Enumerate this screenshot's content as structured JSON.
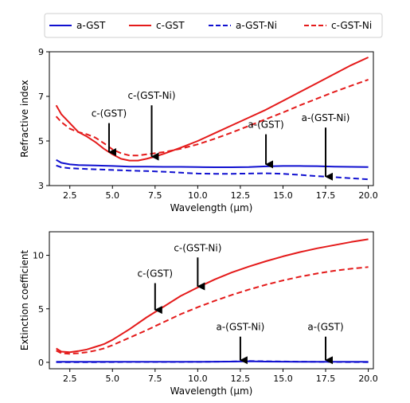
{
  "legend": [
    {
      "name": "a-GST",
      "color": "#1010d0",
      "dash": "solid"
    },
    {
      "name": "c-GST",
      "color": "#e41a1a",
      "dash": "solid"
    },
    {
      "name": "a-GST-Ni",
      "color": "#1010d0",
      "dash": "dashed"
    },
    {
      "name": "c-GST-Ni",
      "color": "#e41a1a",
      "dash": "dashed"
    }
  ],
  "chart_data": [
    {
      "type": "line",
      "xlabel": "Wavelength (μm)",
      "ylabel": "Refractive index",
      "xlim": [
        1.3,
        20.3
      ],
      "ylim": [
        3,
        9
      ],
      "xticks": [
        "2.5",
        "5.0",
        "7.5",
        "10.0",
        "12.5",
        "15.0",
        "17.5",
        "20.0"
      ],
      "yticks": [
        "3",
        "5",
        "7",
        "9"
      ],
      "series": [
        {
          "name": "a-GST",
          "color": "#1010d0",
          "dash": "solid",
          "x": [
            1.7,
            2.0,
            2.5,
            3,
            4,
            5,
            6,
            7,
            8,
            9,
            10,
            11,
            12,
            13,
            14,
            15,
            16,
            17,
            18,
            19,
            20
          ],
          "y": [
            4.15,
            4.02,
            3.95,
            3.92,
            3.9,
            3.88,
            3.85,
            3.85,
            3.84,
            3.84,
            3.83,
            3.82,
            3.82,
            3.83,
            3.86,
            3.88,
            3.88,
            3.87,
            3.85,
            3.84,
            3.83
          ]
        },
        {
          "name": "c-GST",
          "color": "#e41a1a",
          "dash": "solid",
          "x": [
            1.7,
            2.0,
            2.5,
            3,
            3.5,
            4,
            4.5,
            5,
            5.5,
            6,
            6.5,
            7,
            7.5,
            8,
            9,
            10,
            11,
            12,
            13,
            14,
            15,
            16,
            17,
            18,
            19,
            20
          ],
          "y": [
            6.6,
            6.2,
            5.8,
            5.4,
            5.2,
            4.95,
            4.65,
            4.4,
            4.2,
            4.12,
            4.12,
            4.2,
            4.3,
            4.42,
            4.7,
            5.0,
            5.35,
            5.7,
            6.05,
            6.4,
            6.8,
            7.2,
            7.6,
            8.0,
            8.4,
            8.75
          ]
        },
        {
          "name": "a-GST-Ni",
          "color": "#1010d0",
          "dash": "dashed",
          "x": [
            1.7,
            2.0,
            2.5,
            3,
            4,
            5,
            6,
            7,
            8,
            9,
            10,
            11,
            12,
            13,
            14,
            15,
            16,
            17,
            18,
            19,
            20
          ],
          "y": [
            3.9,
            3.82,
            3.78,
            3.76,
            3.73,
            3.7,
            3.67,
            3.65,
            3.62,
            3.58,
            3.54,
            3.53,
            3.53,
            3.54,
            3.55,
            3.53,
            3.48,
            3.42,
            3.38,
            3.33,
            3.28
          ]
        },
        {
          "name": "c-GST-Ni",
          "color": "#e41a1a",
          "dash": "dashed",
          "x": [
            1.7,
            2.0,
            2.5,
            3,
            3.5,
            4,
            4.5,
            5,
            5.5,
            6,
            6.5,
            7,
            7.5,
            8,
            9,
            10,
            11,
            12,
            13,
            14,
            15,
            16,
            17,
            18,
            19,
            20
          ],
          "y": [
            6.1,
            5.85,
            5.55,
            5.4,
            5.3,
            5.15,
            4.9,
            4.62,
            4.45,
            4.35,
            4.35,
            4.4,
            4.45,
            4.5,
            4.65,
            4.85,
            5.1,
            5.38,
            5.68,
            5.98,
            6.28,
            6.6,
            6.9,
            7.2,
            7.48,
            7.75
          ]
        }
      ],
      "annotations": [
        {
          "text": "c-(GST)",
          "x": 4.8,
          "y_tip": 4.5,
          "y_tail": 5.8
        },
        {
          "text": "c-(GST-Ni)",
          "x": 7.3,
          "y_tip": 4.3,
          "y_tail": 6.6
        },
        {
          "text": "a-(GST)",
          "x": 14.0,
          "y_tip": 3.95,
          "y_tail": 5.3
        },
        {
          "text": "a-(GST-Ni)",
          "x": 17.5,
          "y_tip": 3.4,
          "y_tail": 5.6
        }
      ]
    },
    {
      "type": "line",
      "xlabel": "Wavelength (μm)",
      "ylabel": "Extinction coefficient",
      "xlim": [
        1.3,
        20.3
      ],
      "ylim": [
        -0.6,
        12.2
      ],
      "xticks": [
        "2.5",
        "5.0",
        "7.5",
        "10.0",
        "12.5",
        "15.0",
        "17.5",
        "20.0"
      ],
      "yticks": [
        "0",
        "5",
        "10"
      ],
      "series": [
        {
          "name": "a-GST",
          "color": "#1010d0",
          "dash": "solid",
          "x": [
            1.7,
            2.5,
            4,
            6,
            8,
            10,
            12,
            13,
            14,
            16,
            18,
            20
          ],
          "y": [
            0.05,
            0.05,
            0.05,
            0.05,
            0.05,
            0.05,
            0.07,
            0.1,
            0.07,
            0.05,
            0.05,
            0.05
          ]
        },
        {
          "name": "c-GST",
          "color": "#e41a1a",
          "dash": "solid",
          "x": [
            1.7,
            2.0,
            2.5,
            3,
            3.5,
            4,
            4.5,
            5,
            6,
            7,
            8,
            9,
            10,
            11,
            12,
            13,
            14,
            15,
            16,
            17,
            18,
            19,
            20
          ],
          "y": [
            1.3,
            1.0,
            0.95,
            1.05,
            1.2,
            1.45,
            1.7,
            2.1,
            3.1,
            4.2,
            5.2,
            6.2,
            7.0,
            7.75,
            8.4,
            8.95,
            9.45,
            9.9,
            10.3,
            10.65,
            10.95,
            11.25,
            11.5
          ]
        },
        {
          "name": "a-GST-Ni",
          "color": "#1010d0",
          "dash": "dashed",
          "x": [
            1.7,
            2.5,
            4,
            6,
            8,
            10,
            12,
            13,
            14,
            16,
            18,
            20
          ],
          "y": [
            0.02,
            0.02,
            0.02,
            0.03,
            0.03,
            0.04,
            0.08,
            0.12,
            0.1,
            0.06,
            0.03,
            0.02
          ]
        },
        {
          "name": "c-GST-Ni",
          "color": "#e41a1a",
          "dash": "dashed",
          "x": [
            1.7,
            2.0,
            2.5,
            3,
            3.5,
            4,
            4.5,
            5,
            6,
            7,
            8,
            9,
            10,
            11,
            12,
            13,
            14,
            15,
            16,
            17,
            18,
            19,
            20
          ],
          "y": [
            1.1,
            0.85,
            0.8,
            0.85,
            0.95,
            1.1,
            1.3,
            1.6,
            2.3,
            3.0,
            3.75,
            4.5,
            5.15,
            5.75,
            6.3,
            6.8,
            7.25,
            7.65,
            8.0,
            8.3,
            8.55,
            8.75,
            8.9
          ]
        }
      ],
      "annotations": [
        {
          "text": "c-(GST)",
          "x": 7.5,
          "y_tip": 4.9,
          "y_tail": 7.4
        },
        {
          "text": "c-(GST-Ni)",
          "x": 10.0,
          "y_tip": 7.1,
          "y_tail": 9.8
        },
        {
          "text": "a-(GST-Ni)",
          "x": 12.5,
          "y_tip": 0.2,
          "y_tail": 2.4
        },
        {
          "text": "a-(GST)",
          "x": 17.5,
          "y_tip": 0.2,
          "y_tail": 2.4
        }
      ]
    }
  ]
}
